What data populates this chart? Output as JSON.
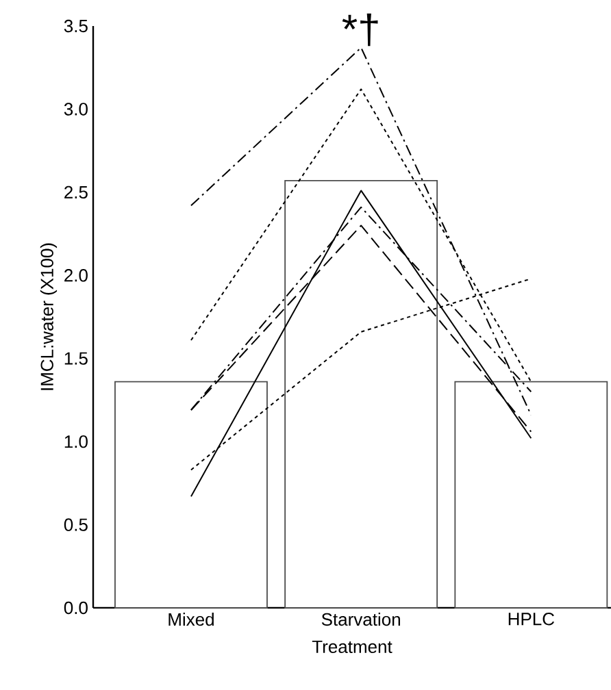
{
  "chart_data": {
    "type": "bar",
    "xlabel": "Treatment",
    "ylabel": "IMCL:water (X100)",
    "categories": [
      "Mixed",
      "Starvation",
      "HPLC"
    ],
    "series": [
      {
        "color": "#ffffff",
        "values": [
          1.36,
          2.57,
          1.36
        ]
      },
      {
        "type": "line",
        "color": "#000000",
        "line_style": "dashdot",
        "values": [
          2.42,
          3.37,
          1.16
        ]
      },
      {
        "type": "line",
        "color": "#000000",
        "line_style": "dotted",
        "values": [
          1.61,
          3.12,
          1.36
        ]
      },
      {
        "type": "line",
        "color": "#000000",
        "line_style": "solid",
        "values": [
          0.67,
          2.51,
          1.02
        ]
      },
      {
        "type": "line",
        "color": "#000000",
        "line_style": "dashdot",
        "values": [
          1.19,
          2.41,
          1.3
        ]
      },
      {
        "type": "line",
        "color": "#000000",
        "line_style": "dashed",
        "values": [
          1.19,
          2.3,
          1.06
        ]
      },
      {
        "type": "line",
        "color": "#000000",
        "line_style": "dotted",
        "values": [
          0.83,
          1.66,
          1.98
        ]
      }
    ],
    "ylim": [
      0,
      3.5
    ],
    "yticks": [
      {
        "value": 0,
        "label": "0.0"
      },
      {
        "value": 0.5,
        "label": "0.5"
      },
      {
        "value": 1,
        "label": "1.0"
      },
      {
        "value": 1.5,
        "label": "1.5"
      },
      {
        "value": 2,
        "label": "2.0"
      },
      {
        "value": 2.5,
        "label": "2.5"
      },
      {
        "value": 3,
        "label": "3.0"
      },
      {
        "value": 3.5,
        "label": "3.5"
      }
    ],
    "annotations": [
      {
        "text": "*†",
        "x": "Starvation",
        "y": 3.37
      }
    ],
    "grid": false
  }
}
